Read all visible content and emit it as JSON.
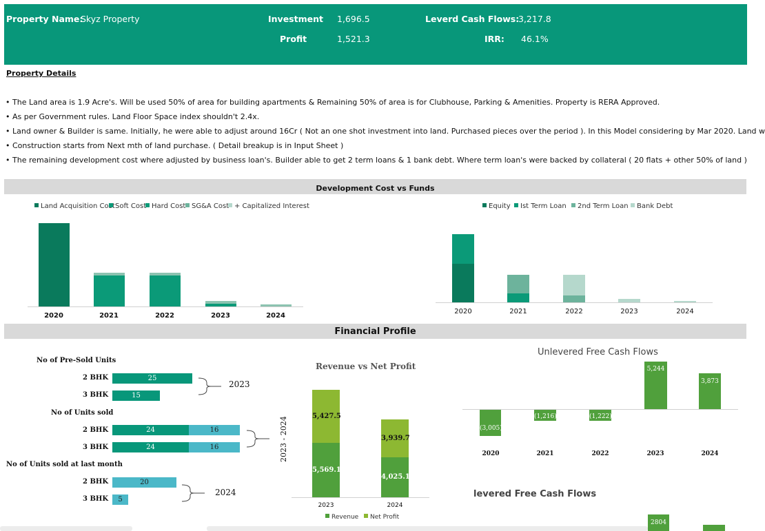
{
  "header": {
    "property_name_label": "Property Name:",
    "property_name_value": "Skyz Property",
    "investment_label": "Investment",
    "investment_value": "1,696.5",
    "profit_label": "Profit",
    "profit_value": "1,521.3",
    "levered_cf_label": "Leverd Cash Flows:",
    "levered_cf_value": "3,217.8",
    "irr_label": "IRR:",
    "irr_value": "46.1%"
  },
  "details": {
    "title": "Property Details",
    "bullets": [
      "The Land area is 1.9 Acre's. Will be used 50% of area for building apartments & Remaining 50% of area is for Clubhouse, Parking & Amenities. Property is RERA Approved.",
      "As per Government rules. Land Floor Space index shouldn't 2.4x.",
      "Land owner & Builder is same. Initially, he were able to adjust around 16Cr ( Not an one shot investment into land. Purchased pieces over the period ). In this Model considering by Mar 2020. Land w",
      "Construction starts from Next mth of land purchase. ( Detail breakup is in Input Sheet )",
      "The remaining development cost where adjusted by business loan's. Builder able to get 2 term loans & 1 bank debt. Where term loan's were backed by collateral ( 20 flats + other 50% of land )"
    ]
  },
  "sections": {
    "dev_title": "Development Cost vs Funds",
    "fin_title": "Financial Profile"
  },
  "colors": {
    "banner": "#08977a",
    "dark_green": "#0a7a5c",
    "teal": "#0b9a78",
    "mid_green": "#6db39c",
    "light_green": "#b5d8cc",
    "pale": "#cfe3dc",
    "green_bar": "#50a03c",
    "lime": "#8db832",
    "cyan": "#4bb8c8"
  },
  "chart_data": [
    {
      "type": "bar",
      "stacked": true,
      "title": "",
      "categories": [
        "2020",
        "2021",
        "2022",
        "2023",
        "2024"
      ],
      "legend_position": "top",
      "series": [
        {
          "name": "Land Acquisition Cost",
          "values": [
            120,
            0,
            0,
            0,
            0
          ]
        },
        {
          "name": "Soft Cost",
          "values": [
            0,
            0,
            0,
            0,
            0
          ]
        },
        {
          "name": "Hard Cost",
          "values": [
            0,
            44,
            44,
            4,
            0
          ]
        },
        {
          "name": "SG&A Cost",
          "values": [
            0,
            4,
            4,
            4,
            3
          ]
        },
        {
          "name": "+ Capitalized Interest",
          "values": [
            0,
            0,
            0,
            0,
            0
          ]
        }
      ]
    },
    {
      "type": "bar",
      "stacked": true,
      "title": "",
      "categories": [
        "2020",
        "2021",
        "2022",
        "2023",
        "2024"
      ],
      "legend_position": "top",
      "series": [
        {
          "name": "Equity",
          "values": [
            56,
            0,
            0,
            0,
            0
          ]
        },
        {
          "name": "Ist Term Loan",
          "values": [
            43,
            13,
            0,
            0,
            0
          ]
        },
        {
          "name": "2nd Term Loan",
          "values": [
            0,
            27,
            10,
            0,
            0
          ]
        },
        {
          "name": "Bank Debt",
          "values": [
            0,
            0,
            30,
            5,
            2
          ]
        }
      ]
    },
    {
      "type": "bar",
      "orientation": "horizontal",
      "title": "",
      "groups": [
        {
          "label": "No of Pre-Sold Units",
          "period": "2023",
          "rows": [
            {
              "name": "2 BHK",
              "values": [
                25
              ]
            },
            {
              "name": "3 BHK",
              "values": [
                15
              ]
            }
          ]
        },
        {
          "label": "No of Units sold",
          "period": "2023 - 2024",
          "rows": [
            {
              "name": "2 BHK",
              "values": [
                24,
                16
              ]
            },
            {
              "name": "3 BHK",
              "values": [
                24,
                16
              ]
            }
          ]
        },
        {
          "label": "No of Units sold at last month",
          "period": "2024",
          "rows": [
            {
              "name": "2 BHK",
              "values": [
                20
              ]
            },
            {
              "name": "3 BHK",
              "values": [
                5
              ]
            }
          ]
        }
      ]
    },
    {
      "type": "bar",
      "stacked": true,
      "title": "Revenue vs Net Profit",
      "categories": [
        "2023",
        "2024"
      ],
      "series": [
        {
          "name": "Revenue",
          "values": [
            5569.1,
            4025.1
          ],
          "labels": [
            "5,569.1",
            "4,025.1"
          ]
        },
        {
          "name": "Net Profit",
          "values": [
            5427.5,
            3939.7
          ],
          "labels": [
            "5,427.5",
            "3,939.7"
          ]
        }
      ]
    },
    {
      "type": "bar",
      "title": "Unlevered Free Cash Flows",
      "categories": [
        "2020",
        "2021",
        "2022",
        "2023",
        "2024"
      ],
      "values": [
        -3005,
        -1216,
        -1222,
        5244,
        3873
      ],
      "labels": [
        "(3,005)",
        "(1,216)",
        "(1,222)",
        "5,244",
        "3,873"
      ]
    },
    {
      "type": "bar",
      "title": "levered Free Cash Flows",
      "partial": true,
      "visible_labels": [
        "2804"
      ]
    }
  ],
  "charts": {
    "dev_legend": [
      "Land Acquisition Cost",
      "Soft Cost",
      "Hard Cost",
      "SG&A Cost",
      "+ Capitalized Interest"
    ],
    "funds_legend": [
      "Equity",
      "Ist Term Loan",
      "2nd Term Loan",
      "Bank Debt"
    ],
    "years": [
      "2020",
      "2021",
      "2022",
      "2023",
      "2024"
    ],
    "units": {
      "presold_label": "No of Pre-Sold Units",
      "sold_label": "No of Units sold",
      "last_label": "No of Units sold at last month",
      "bhk2": "2 BHK",
      "bhk3": "3 BHK",
      "presold_2": "25",
      "presold_3": "15",
      "sold_2a": "24",
      "sold_2b": "16",
      "sold_3a": "24",
      "sold_3b": "16",
      "last_2": "20",
      "last_3": "5",
      "period_1": "2023",
      "period_2": "2023 - 2024",
      "period_3": "2024"
    },
    "rev_title": "Revenue vs Net Profit",
    "rev_years": [
      "2023",
      "2024"
    ],
    "rev_labels": {
      "rev_2023": "5,569.1",
      "np_2023": "5,427.5",
      "rev_2024": "4,025.1",
      "np_2024": "3,939.7"
    },
    "rev_legend": [
      "Revenue",
      "Net Profit"
    ],
    "ufcf_title": "Unlevered Free Cash Flows",
    "ufcf_labels": [
      "(3,005)",
      "(1,216)",
      "(1,222)",
      "5,244",
      "3,873"
    ],
    "lfcf_title": "levered Free Cash Flows",
    "lfcf_visible": "2804"
  }
}
